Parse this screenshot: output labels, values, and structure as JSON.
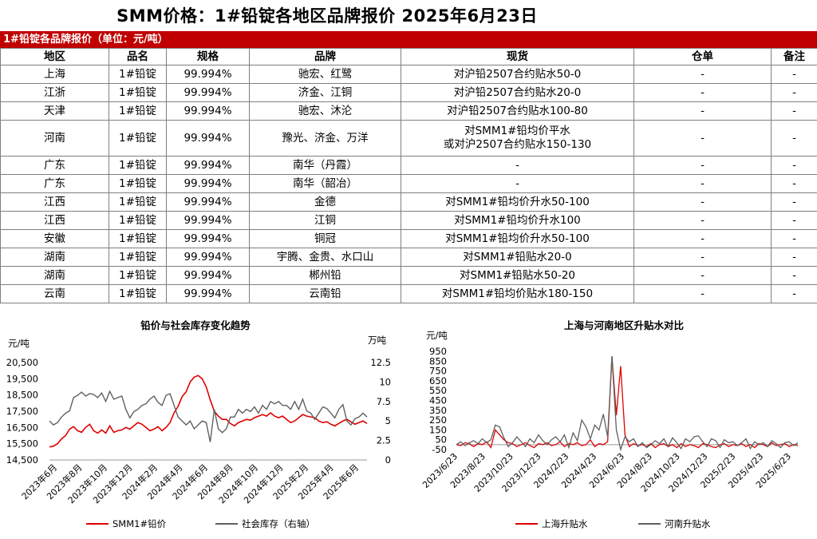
{
  "title": "SMM价格：1#铅锭各地区品牌报价 2025年6月23日",
  "table_title": "1#铅锭各品牌报价（单位：元/吨）",
  "headers": [
    "地区",
    "品名",
    "规格",
    "品牌",
    "现货",
    "仓单",
    "备注"
  ],
  "rows": [
    [
      "上海",
      "1#铅锭",
      "99.994%",
      "驰宏、红鹭",
      "对沪铅2507合约贴水50-0",
      "-",
      "-"
    ],
    [
      "江浙",
      "1#铅锭",
      "99.994%",
      "济金、江铜",
      "对沪铅2507合约贴水20-0",
      "-",
      "-"
    ],
    [
      "天津",
      "1#铅锭",
      "99.994%",
      "驰宏、沐沦",
      "对沪铅2507合约贴水100-80",
      "-",
      "-"
    ],
    [
      "河南",
      "1#铅锭",
      "99.994%",
      "豫光、济金、万洋",
      "对SMM1#铅均价平水\n或对沪2507合约贴水150-130",
      "-",
      "-"
    ],
    [
      "广东",
      "1#铅锭",
      "99.994%",
      "南华（丹霞）",
      "-",
      "-",
      "-"
    ],
    [
      "广东",
      "1#铅锭",
      "99.994%",
      "南华（韶冶）",
      "-",
      "-",
      "-"
    ],
    [
      "江西",
      "1#铅锭",
      "99.994%",
      "金德",
      "对SMM1#铅均价升水50-100",
      "-",
      "-"
    ],
    [
      "江西",
      "1#铅锭",
      "99.994%",
      "江铜",
      "对SMM1#铅均价升水100",
      "-",
      "-"
    ],
    [
      "安徽",
      "1#铅锭",
      "99.994%",
      "铜冠",
      "对SMM1#铅均价升水50-100",
      "-",
      "-"
    ],
    [
      "湖南",
      "1#铅锭",
      "99.994%",
      "宇腾、金贵、水口山",
      "对SMM1#铅贴水20-0",
      "-",
      "-"
    ],
    [
      "湖南",
      "1#铅锭",
      "99.994%",
      "郴州铅",
      "对SMM1#铅贴水50-20",
      "-",
      "-"
    ],
    [
      "云南",
      "1#铅锭",
      "99.994%",
      "云南铅",
      "对SMM1#铅均价贴水180-150",
      "-",
      "-"
    ]
  ],
  "chart_data": [
    {
      "type": "line",
      "title": "铅价与社会库存变化趋势",
      "ylabel_left": "元/吨",
      "ylabel_right": "万吨",
      "y_left_ticks": [
        "20,500",
        "19,500",
        "18,500",
        "17,500",
        "16,500",
        "15,500",
        "14,500"
      ],
      "y_right_ticks": [
        "12.5",
        "10",
        "7.5",
        "5",
        "2.5",
        "0"
      ],
      "ylim_left": [
        14500,
        20500
      ],
      "ylim_right": [
        0,
        12.5
      ],
      "x_ticks": [
        "2023年6月",
        "2023年8月",
        "2023年10月",
        "2023年12月",
        "2024年2月",
        "2024年4月",
        "2024年6月",
        "2024年8月",
        "2024年10月",
        "2024年12月",
        "2025年2月",
        "2025年4月",
        "2025年6月"
      ],
      "series": [
        {
          "name": "SMM1#铅价",
          "axis": "left",
          "color": "#e00000",
          "values": [
            15300,
            15350,
            15500,
            15800,
            16000,
            16400,
            16550,
            16300,
            16200,
            16500,
            16700,
            16300,
            16150,
            16350,
            16150,
            16600,
            16200,
            16300,
            16350,
            16500,
            16400,
            16600,
            16800,
            16700,
            16500,
            16300,
            16400,
            16550,
            16300,
            16500,
            16800,
            17400,
            17800,
            18400,
            18700,
            19300,
            19600,
            19700,
            19500,
            19000,
            18200,
            17500,
            17200,
            17000,
            17000,
            16750,
            16600,
            16800,
            16900,
            17000,
            16950,
            17100,
            17200,
            17300,
            17200,
            17400,
            17200,
            17100,
            17200,
            17000,
            16800,
            16900,
            17100,
            17300,
            17200,
            17150,
            17100,
            16900,
            16800,
            16850,
            16700,
            16600,
            16750,
            16900,
            17000,
            16850,
            16700,
            16800,
            16900,
            16750
          ]
        },
        {
          "name": "社会库存（右轴）",
          "axis": "right",
          "color": "#606060",
          "values": [
            5.0,
            4.5,
            4.8,
            5.5,
            6.0,
            6.3,
            8.0,
            8.3,
            8.7,
            8.2,
            8.5,
            8.4,
            8.0,
            8.6,
            7.5,
            8.8,
            7.8,
            8.0,
            8.2,
            6.5,
            5.4,
            6.2,
            6.5,
            7.0,
            7.2,
            7.8,
            8.2,
            7.4,
            7.0,
            8.3,
            8.5,
            7.0,
            5.5,
            5.0,
            4.5,
            5.0,
            4.0,
            4.5,
            5.0,
            4.8,
            2.3,
            6.5,
            4.0,
            3.5,
            4.0,
            5.5,
            5.5,
            6.5,
            6.0,
            6.5,
            6.2,
            6.8,
            6.0,
            7.0,
            6.5,
            7.5,
            7.2,
            7.5,
            7.0,
            7.0,
            6.5,
            7.5,
            6.5,
            7.8,
            6.3,
            6.0,
            5.2,
            6.0,
            6.8,
            6.6,
            6.0,
            5.4,
            6.5,
            7.1,
            5.0,
            4.5,
            5.3,
            5.5,
            6.0,
            5.5
          ]
        }
      ]
    },
    {
      "type": "line",
      "title": "上海与河南地区升贴水对比",
      "ylabel": "元/吨",
      "y_ticks": [
        "950",
        "850",
        "750",
        "650",
        "550",
        "450",
        "350",
        "250",
        "150",
        "50",
        "-50"
      ],
      "ylim": [
        -50,
        950
      ],
      "x_ticks": [
        "2023/6/23",
        "2023/8/23",
        "2023/10/23",
        "2023/12/23",
        "2024/2/23",
        "2024/4/23",
        "2024/6/23",
        "2024/8/23",
        "2024/10/23",
        "2024/12/23",
        "2025/2/23",
        "2025/4/23",
        "2025/6/23"
      ],
      "series": [
        {
          "name": "上海升贴水",
          "color": "#e00000",
          "values": [
            0,
            -10,
            20,
            10,
            -20,
            10,
            0,
            30,
            -30,
            150,
            100,
            50,
            20,
            10,
            -20,
            0,
            20,
            -10,
            -30,
            10,
            0,
            20,
            -10,
            0,
            30,
            -20,
            10,
            0,
            20,
            -10,
            0,
            50,
            -20,
            10,
            0,
            30,
            900,
            300,
            800,
            100,
            -20,
            10,
            -10,
            0,
            -20,
            10,
            -30,
            0,
            10,
            -20,
            0,
            -30,
            10,
            -20,
            0,
            -10,
            -30,
            10,
            0,
            -20,
            -30,
            0,
            10,
            -20,
            0,
            -10,
            10,
            -20,
            0,
            -30,
            10,
            0,
            -20,
            20,
            -10,
            0,
            10,
            -20,
            0,
            -10
          ]
        },
        {
          "name": "河南升贴水",
          "color": "#606060",
          "values": [
            0,
            30,
            -10,
            20,
            40,
            10,
            60,
            20,
            50,
            200,
            180,
            70,
            -20,
            20,
            80,
            30,
            -20,
            60,
            20,
            100,
            40,
            0,
            50,
            80,
            30,
            100,
            -30,
            120,
            40,
            250,
            180,
            60,
            200,
            150,
            310,
            80,
            900,
            150,
            -50,
            80,
            30,
            60,
            -20,
            20,
            -30,
            0,
            40,
            10,
            60,
            -20,
            70,
            20,
            -40,
            60,
            30,
            80,
            90,
            30,
            -20,
            60,
            40,
            -30,
            50,
            20,
            30,
            -10,
            20,
            60,
            -40,
            30,
            0,
            20,
            -20,
            40,
            10,
            -30,
            20,
            30,
            -10,
            20
          ]
        }
      ]
    }
  ]
}
